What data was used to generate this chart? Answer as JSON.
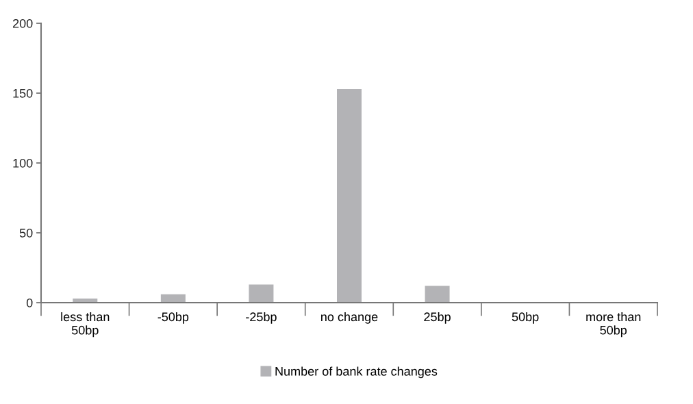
{
  "chart_data": {
    "type": "bar",
    "categories": [
      "less than\n50bp",
      "-50bp",
      "-25bp",
      "no change",
      "25bp",
      "50bp",
      "more than\n50bp"
    ],
    "series": [
      {
        "name": "Number of bank rate changes",
        "color": "#b3b3b6",
        "values": [
          3,
          6,
          13,
          153,
          12,
          0,
          0
        ]
      }
    ],
    "ylim": [
      0,
      200
    ],
    "yticks": [
      0,
      50,
      100,
      150,
      200
    ],
    "grid": false,
    "legend": "bottom"
  }
}
